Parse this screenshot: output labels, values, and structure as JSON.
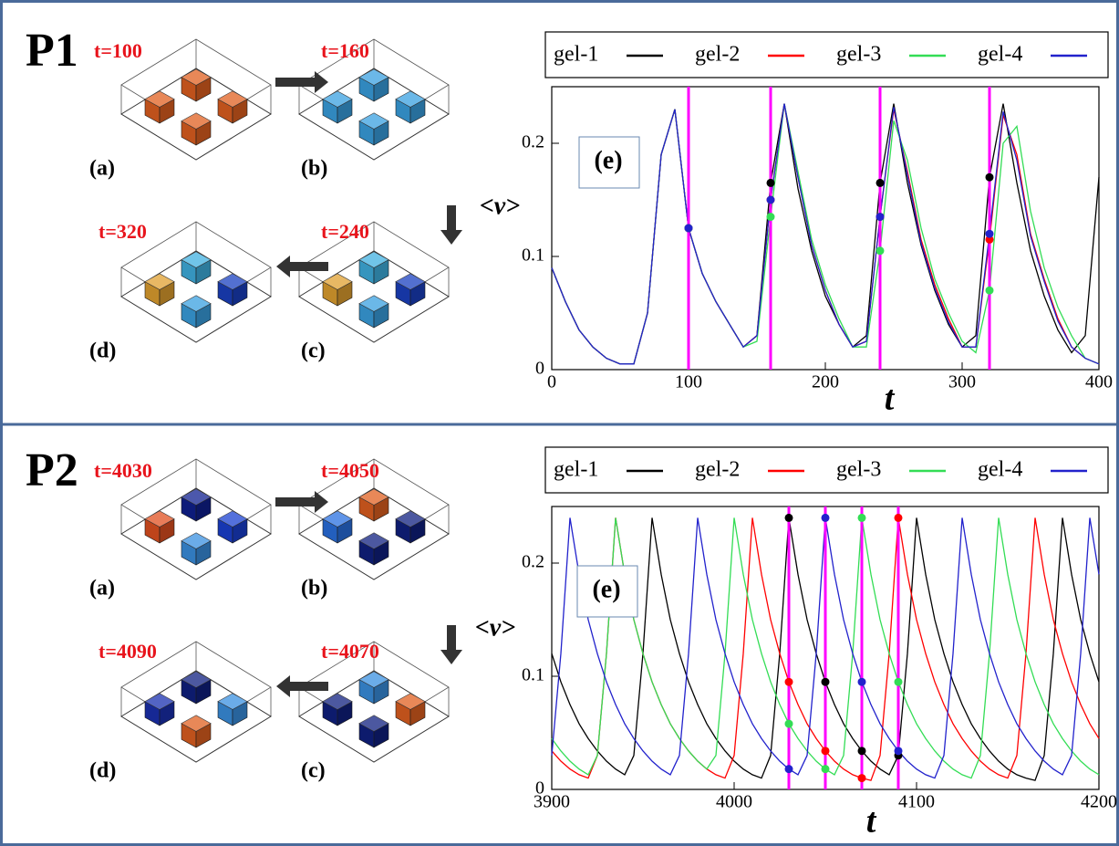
{
  "panels": [
    {
      "label": "P1",
      "snapshots": [
        {
          "time": "t=100",
          "tag": "(a)"
        },
        {
          "time": "t=160",
          "tag": "(b)"
        },
        {
          "time": "t=240",
          "tag": "(c)"
        },
        {
          "time": "t=320",
          "tag": "(d)"
        }
      ]
    },
    {
      "label": "P2",
      "snapshots": [
        {
          "time": "t=4030",
          "tag": "(a)"
        },
        {
          "time": "t=4050",
          "tag": "(b)"
        },
        {
          "time": "t=4070",
          "tag": "(c)"
        },
        {
          "time": "t=4090",
          "tag": "(d)"
        }
      ]
    }
  ],
  "chart_data": [
    {
      "type": "line",
      "annotation": "(e)",
      "xlabel": "t",
      "ylabel": "<v>",
      "xlim": [
        0,
        400
      ],
      "xticks": [
        0,
        100,
        200,
        300,
        400
      ],
      "ylim": [
        0,
        0.25
      ],
      "yticks": [
        0,
        0.1,
        0.2
      ],
      "markers": [
        100,
        160,
        240,
        320
      ],
      "marker_color": "#ff00ff",
      "x": [
        0,
        10,
        20,
        30,
        40,
        50,
        60,
        70,
        80,
        90,
        100,
        110,
        120,
        130,
        140,
        150,
        160,
        170,
        180,
        190,
        200,
        210,
        220,
        230,
        240,
        250,
        260,
        270,
        280,
        290,
        300,
        310,
        320,
        330,
        340,
        350,
        360,
        370,
        380,
        390,
        400
      ],
      "series": [
        {
          "name": "gel-1",
          "color": "#000000",
          "values": [
            0.09,
            0.06,
            0.035,
            0.02,
            0.01,
            0.005,
            0.005,
            0.05,
            0.19,
            0.23,
            0.125,
            0.085,
            0.06,
            0.04,
            0.02,
            0.03,
            0.165,
            0.235,
            0.16,
            0.105,
            0.065,
            0.04,
            0.02,
            0.03,
            0.165,
            0.235,
            0.165,
            0.11,
            0.07,
            0.04,
            0.02,
            0.03,
            0.17,
            0.235,
            0.165,
            0.105,
            0.065,
            0.035,
            0.015,
            0.03,
            0.17
          ]
        },
        {
          "name": "gel-2",
          "color": "#ff0000",
          "values": [
            0.09,
            0.06,
            0.035,
            0.02,
            0.01,
            0.005,
            0.005,
            0.05,
            0.19,
            0.23,
            0.125,
            0.085,
            0.06,
            0.04,
            0.02,
            0.03,
            0.15,
            0.235,
            0.17,
            0.11,
            0.07,
            0.04,
            0.02,
            0.025,
            0.135,
            0.23,
            0.175,
            0.115,
            0.075,
            0.045,
            0.02,
            0.02,
            0.115,
            0.225,
            0.19,
            0.12,
            0.08,
            0.045,
            0.02,
            0.01,
            0.005
          ]
        },
        {
          "name": "gel-3",
          "color": "#33dd55",
          "values": [
            0.09,
            0.06,
            0.035,
            0.02,
            0.01,
            0.005,
            0.005,
            0.05,
            0.19,
            0.23,
            0.125,
            0.085,
            0.06,
            0.04,
            0.02,
            0.025,
            0.135,
            0.235,
            0.175,
            0.115,
            0.075,
            0.045,
            0.02,
            0.02,
            0.105,
            0.22,
            0.185,
            0.125,
            0.08,
            0.05,
            0.025,
            0.015,
            0.07,
            0.2,
            0.215,
            0.14,
            0.09,
            0.055,
            0.03,
            0.01,
            0.005
          ]
        },
        {
          "name": "gel-4",
          "color": "#2222cc",
          "values": [
            0.09,
            0.06,
            0.035,
            0.02,
            0.01,
            0.005,
            0.005,
            0.05,
            0.19,
            0.23,
            0.125,
            0.085,
            0.06,
            0.04,
            0.02,
            0.03,
            0.15,
            0.235,
            0.17,
            0.11,
            0.07,
            0.04,
            0.02,
            0.025,
            0.135,
            0.232,
            0.172,
            0.112,
            0.072,
            0.042,
            0.02,
            0.02,
            0.12,
            0.228,
            0.185,
            0.118,
            0.078,
            0.043,
            0.02,
            0.01,
            0.005
          ]
        }
      ]
    },
    {
      "type": "line",
      "annotation": "(e)",
      "xlabel": "t",
      "ylabel": "<v>",
      "xlim": [
        3900,
        4200
      ],
      "xticks": [
        3900,
        4000,
        4100,
        4200
      ],
      "ylim": [
        0,
        0.25
      ],
      "yticks": [
        0,
        0.1,
        0.2
      ],
      "markers": [
        4030,
        4050,
        4070,
        4090
      ],
      "marker_color": "#ff00ff",
      "x": [
        3900,
        3905,
        3910,
        3915,
        3920,
        3925,
        3930,
        3935,
        3940,
        3945,
        3950,
        3955,
        3960,
        3965,
        3970,
        3975,
        3980,
        3985,
        3990,
        3995,
        4000,
        4005,
        4010,
        4015,
        4020,
        4025,
        4030,
        4035,
        4040,
        4045,
        4050,
        4055,
        4060,
        4065,
        4070,
        4075,
        4080,
        4085,
        4090,
        4095,
        4100,
        4105,
        4110,
        4115,
        4120,
        4125,
        4130,
        4135,
        4140,
        4145,
        4150,
        4155,
        4160,
        4165,
        4170,
        4175,
        4180,
        4185,
        4190,
        4195,
        4200
      ],
      "series": [
        {
          "name": "gel-1",
          "color": "#000000",
          "values": [
            0.12,
            0.095,
            0.075,
            0.058,
            0.045,
            0.034,
            0.025,
            0.018,
            0.013,
            0.03,
            0.12,
            0.24,
            0.19,
            0.15,
            0.12,
            0.095,
            0.075,
            0.058,
            0.045,
            0.034,
            0.025,
            0.018,
            0.013,
            0.01,
            0.03,
            0.12,
            0.24,
            0.19,
            0.15,
            0.12,
            0.095,
            0.075,
            0.058,
            0.045,
            0.034,
            0.025,
            0.018,
            0.013,
            0.03,
            0.12,
            0.24,
            0.19,
            0.15,
            0.12,
            0.095,
            0.075,
            0.058,
            0.045,
            0.034,
            0.025,
            0.018,
            0.013,
            0.01,
            0.008,
            0.03,
            0.12,
            0.24,
            0.19,
            0.15,
            0.12,
            0.095
          ]
        },
        {
          "name": "gel-2",
          "color": "#ff0000",
          "values": [
            0.034,
            0.025,
            0.018,
            0.013,
            0.01,
            0.03,
            0.12,
            0.24,
            0.19,
            0.15,
            0.12,
            0.095,
            0.075,
            0.058,
            0.045,
            0.034,
            0.025,
            0.018,
            0.013,
            0.01,
            0.03,
            0.12,
            0.24,
            0.19,
            0.15,
            0.12,
            0.095,
            0.075,
            0.058,
            0.045,
            0.034,
            0.025,
            0.018,
            0.013,
            0.01,
            0.008,
            0.03,
            0.12,
            0.24,
            0.19,
            0.15,
            0.12,
            0.095,
            0.075,
            0.058,
            0.045,
            0.034,
            0.025,
            0.018,
            0.013,
            0.01,
            0.03,
            0.12,
            0.24,
            0.19,
            0.15,
            0.12,
            0.095,
            0.075,
            0.058,
            0.045
          ]
        },
        {
          "name": "gel-3",
          "color": "#33dd55",
          "values": [
            0.045,
            0.034,
            0.025,
            0.018,
            0.013,
            0.03,
            0.12,
            0.24,
            0.19,
            0.15,
            0.12,
            0.095,
            0.075,
            0.058,
            0.045,
            0.034,
            0.025,
            0.018,
            0.03,
            0.12,
            0.24,
            0.19,
            0.15,
            0.12,
            0.095,
            0.075,
            0.058,
            0.045,
            0.034,
            0.025,
            0.018,
            0.013,
            0.03,
            0.12,
            0.24,
            0.19,
            0.15,
            0.12,
            0.095,
            0.075,
            0.058,
            0.045,
            0.034,
            0.025,
            0.018,
            0.013,
            0.01,
            0.03,
            0.12,
            0.24,
            0.19,
            0.15,
            0.12,
            0.095,
            0.075,
            0.058,
            0.045,
            0.034,
            0.025,
            0.018,
            0.013
          ]
        },
        {
          "name": "gel-4",
          "color": "#2222cc",
          "values": [
            0.03,
            0.12,
            0.24,
            0.19,
            0.15,
            0.12,
            0.095,
            0.075,
            0.058,
            0.045,
            0.034,
            0.025,
            0.018,
            0.013,
            0.03,
            0.12,
            0.24,
            0.19,
            0.15,
            0.12,
            0.095,
            0.075,
            0.058,
            0.045,
            0.034,
            0.025,
            0.018,
            0.013,
            0.03,
            0.12,
            0.24,
            0.19,
            0.15,
            0.12,
            0.095,
            0.075,
            0.058,
            0.045,
            0.034,
            0.025,
            0.018,
            0.013,
            0.01,
            0.03,
            0.12,
            0.24,
            0.19,
            0.15,
            0.12,
            0.095,
            0.075,
            0.058,
            0.045,
            0.034,
            0.025,
            0.018,
            0.013,
            0.03,
            0.12,
            0.24,
            0.19
          ]
        }
      ]
    }
  ]
}
